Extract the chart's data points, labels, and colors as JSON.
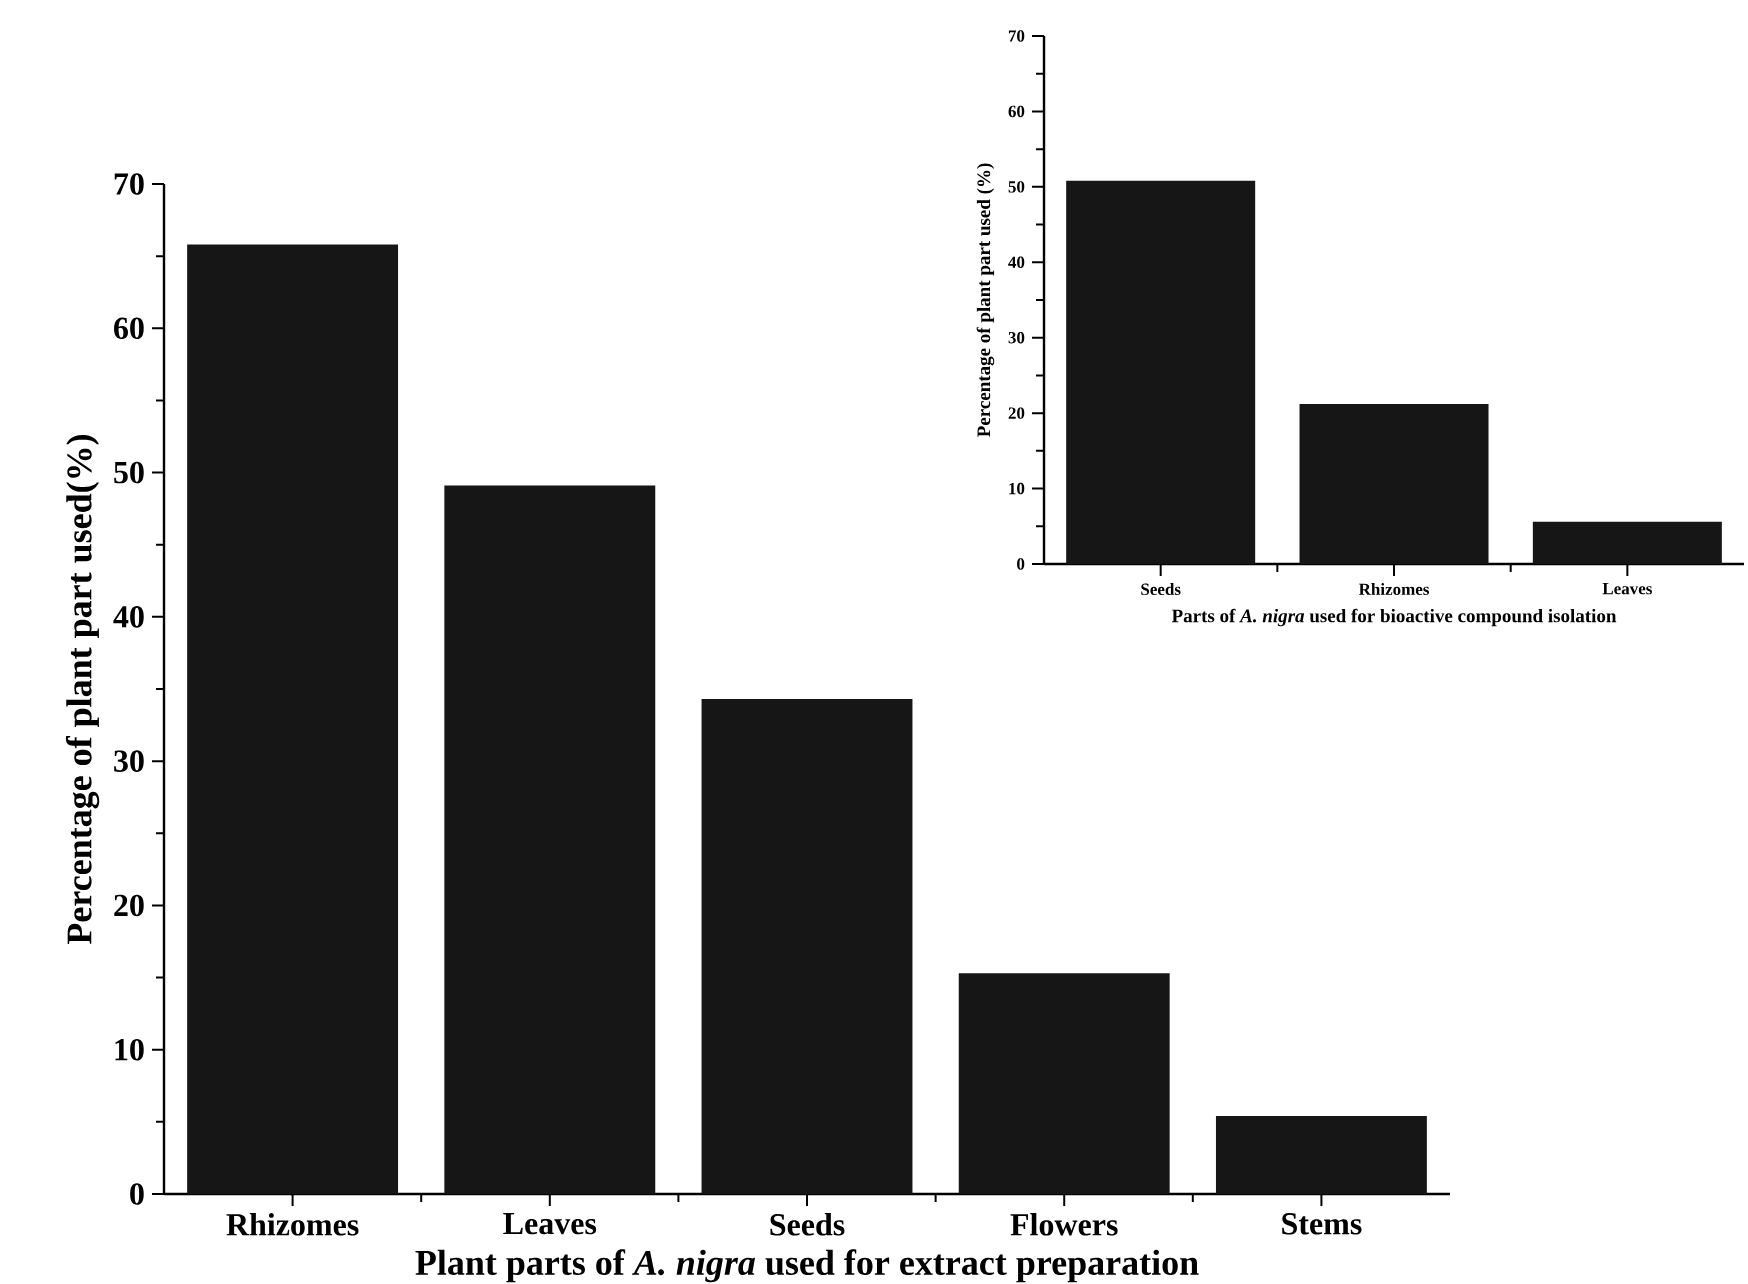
{
  "chart_data": [
    {
      "type": "bar",
      "xlabel": "Plant parts of *A. nigra* used for extract preparation",
      "ylabel": "Percentage of plant part used(%)",
      "categories": [
        "Rhizomes",
        "Leaves",
        "Seeds",
        "Flowers",
        "Stems"
      ],
      "values": [
        65.8,
        49.1,
        34.3,
        15.3,
        5.4
      ],
      "color": "#161616",
      "ylim": [
        0,
        70
      ],
      "yticks": [
        0,
        10,
        20,
        30,
        40,
        50,
        60,
        70
      ]
    },
    {
      "type": "bar",
      "xlabel": "Parts of *A. nigra* used for bioactive compound isolation",
      "ylabel": "Percentage of plant part used (%)",
      "categories": [
        "Seeds",
        "Rhizomes",
        "Leaves"
      ],
      "values": [
        50.8,
        21.2,
        5.6
      ],
      "color": "#161616",
      "ylim": [
        0,
        70
      ],
      "yticks": [
        0,
        10,
        20,
        30,
        40,
        50,
        60,
        70
      ]
    }
  ]
}
